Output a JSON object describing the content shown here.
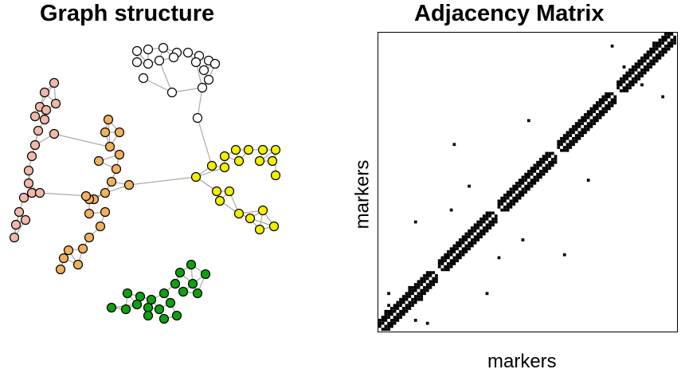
{
  "graph_panel": {
    "title": "Graph structure",
    "clusters": [
      {
        "name": "white",
        "color": "#ffffff",
        "nodes": 18
      },
      {
        "name": "salmon",
        "color": "#f0b8a8",
        "nodes": 20
      },
      {
        "name": "orange",
        "color": "#f0b060",
        "nodes": 22
      },
      {
        "name": "yellow",
        "color": "#f0f000",
        "nodes": 20
      },
      {
        "name": "green",
        "color": "#10a010",
        "nodes": 20
      }
    ],
    "edge_color": "#aaaaaa",
    "node_stroke": "#000000"
  },
  "matrix_panel": {
    "title": "Adjacency Matrix",
    "xlabel": "markers",
    "ylabel": "markers",
    "size": 100,
    "blocks": 5,
    "fill_color": "#000000"
  }
}
